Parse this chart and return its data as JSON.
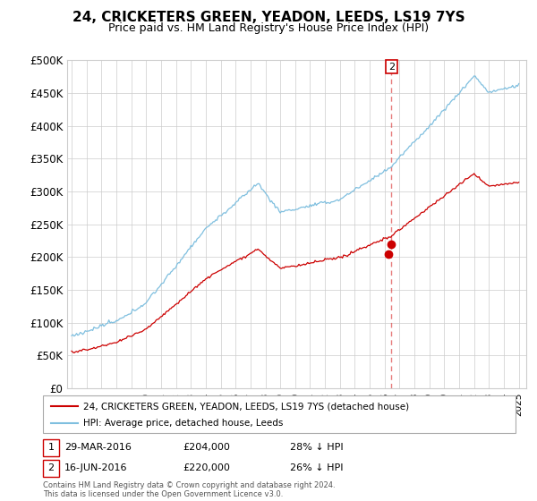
{
  "title": "24, CRICKETERS GREEN, YEADON, LEEDS, LS19 7YS",
  "subtitle": "Price paid vs. HM Land Registry's House Price Index (HPI)",
  "title_fontsize": 11,
  "subtitle_fontsize": 9,
  "ylabel_ticks": [
    "£0",
    "£50K",
    "£100K",
    "£150K",
    "£200K",
    "£250K",
    "£300K",
    "£350K",
    "£400K",
    "£450K",
    "£500K"
  ],
  "ytick_values": [
    0,
    50000,
    100000,
    150000,
    200000,
    250000,
    300000,
    350000,
    400000,
    450000,
    500000
  ],
  "ylim": [
    0,
    500000
  ],
  "hpi_color": "#7fbfdf",
  "price_color": "#cc0000",
  "dashed_line_color": "#dd4444",
  "legend_label_price": "24, CRICKETERS GREEN, YEADON, LEEDS, LS19 7YS (detached house)",
  "legend_label_hpi": "HPI: Average price, detached house, Leeds",
  "transaction1_label": "1",
  "transaction1_date": "29-MAR-2016",
  "transaction1_price": "£204,000",
  "transaction1_note": "28% ↓ HPI",
  "transaction2_label": "2",
  "transaction2_date": "16-JUN-2016",
  "transaction2_price": "£220,000",
  "transaction2_note": "26% ↓ HPI",
  "footnote": "Contains HM Land Registry data © Crown copyright and database right 2024.\nThis data is licensed under the Open Government Licence v3.0.",
  "x_start_year": 1995,
  "x_end_year": 2025,
  "purchase1_year": 2016.24,
  "purchase1_price": 204000,
  "purchase2_year": 2016.46,
  "purchase2_price": 220000,
  "background_color": "#ffffff",
  "grid_color": "#cccccc"
}
